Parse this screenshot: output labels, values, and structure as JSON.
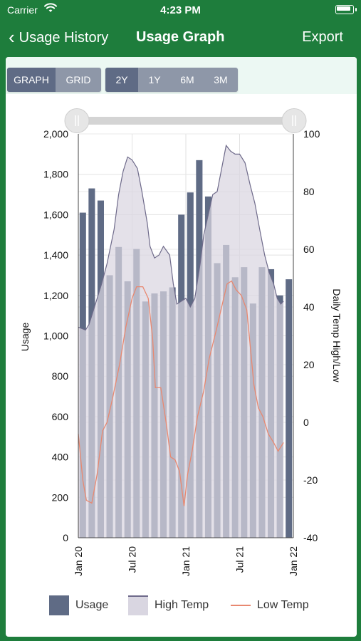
{
  "status": {
    "carrier": "Carrier",
    "time": "4:23 PM"
  },
  "nav": {
    "back_label": "Usage History",
    "title": "Usage Graph",
    "export_label": "Export"
  },
  "toolbar": {
    "view_options": [
      {
        "label": "GRAPH",
        "active": true
      },
      {
        "label": "GRID",
        "active": false
      }
    ],
    "range_options": [
      {
        "label": "2Y",
        "active": true
      },
      {
        "label": "1Y",
        "active": false
      },
      {
        "label": "6M",
        "active": false
      },
      {
        "label": "3M",
        "active": false
      }
    ]
  },
  "range_slider": {
    "start_fraction": 0,
    "end_fraction": 1
  },
  "legend": {
    "usage": "Usage",
    "high": "High Temp",
    "low": "Low Temp"
  },
  "colors": {
    "usage": "#5f6b85",
    "high_fill": "#d9d6e1",
    "high_line": "#6e6a8a",
    "low_line": "#e88870",
    "accent": "#1e7d3c"
  },
  "chart_data": {
    "type": "bar",
    "ylabel": "Usage",
    "y2label": "Daily Temp High/Low",
    "ylim": [
      0,
      2000
    ],
    "y2lim": [
      -40,
      100
    ],
    "yticks": [
      "0",
      "200",
      "400",
      "600",
      "800",
      "1,000",
      "1,200",
      "1,400",
      "1,600",
      "1,800",
      "2,000"
    ],
    "y2ticks": [
      "-40",
      "-20",
      "0",
      "20",
      "40",
      "60",
      "80",
      "100"
    ],
    "xlim": [
      0,
      24
    ],
    "xticks": [
      {
        "pos": 0,
        "label": "Jan 20"
      },
      {
        "pos": 6,
        "label": "Jul 20"
      },
      {
        "pos": 12,
        "label": "Jan 21"
      },
      {
        "pos": 18,
        "label": "Jul 21"
      },
      {
        "pos": 24,
        "label": "Jan 22"
      }
    ],
    "grid": true,
    "series": [
      {
        "name": "Usage",
        "type": "bar",
        "values": [
          1610,
          1730,
          1670,
          1300,
          1440,
          1270,
          1430,
          1170,
          1210,
          1220,
          1240,
          1600,
          1710,
          1870,
          1690,
          1360,
          1450,
          1290,
          1340,
          1160,
          1340,
          1330,
          1200,
          1280
        ]
      },
      {
        "name": "High Temp",
        "type": "area",
        "points": [
          [
            0,
            33
          ],
          [
            0.8,
            32
          ],
          [
            1.2,
            34
          ],
          [
            1.8,
            40
          ],
          [
            2.6,
            48
          ],
          [
            3.2,
            55
          ],
          [
            4,
            67
          ],
          [
            4.5,
            79
          ],
          [
            5,
            87
          ],
          [
            5.5,
            92
          ],
          [
            6,
            91
          ],
          [
            6.6,
            88
          ],
          [
            7.1,
            80
          ],
          [
            7.7,
            69
          ],
          [
            8,
            61
          ],
          [
            8.5,
            57
          ],
          [
            9,
            58
          ],
          [
            9.5,
            61
          ],
          [
            10.2,
            58
          ],
          [
            10.6,
            48
          ],
          [
            11,
            41
          ],
          [
            11.5,
            42
          ],
          [
            12,
            43
          ],
          [
            12.5,
            40
          ],
          [
            13,
            43
          ],
          [
            13.6,
            55
          ],
          [
            14,
            65
          ],
          [
            14.5,
            72
          ],
          [
            15,
            79
          ],
          [
            15.5,
            80
          ],
          [
            16,
            88
          ],
          [
            16.5,
            96
          ],
          [
            17,
            94
          ],
          [
            17.5,
            93
          ],
          [
            18,
            93
          ],
          [
            18.6,
            90
          ],
          [
            19.2,
            82
          ],
          [
            19.7,
            76
          ],
          [
            20.3,
            66
          ],
          [
            20.8,
            58
          ],
          [
            21.3,
            52
          ],
          [
            21.8,
            48
          ],
          [
            22.2,
            43
          ],
          [
            22.6,
            41
          ],
          [
            22.9,
            42
          ]
        ]
      },
      {
        "name": "Low Temp",
        "type": "line",
        "points": [
          [
            0,
            -4
          ],
          [
            0.5,
            -20
          ],
          [
            0.9,
            -27
          ],
          [
            1.5,
            -28
          ],
          [
            2.1,
            -18
          ],
          [
            2.7,
            -3
          ],
          [
            3.2,
            0
          ],
          [
            3.8,
            8
          ],
          [
            4.6,
            20
          ],
          [
            5.3,
            33
          ],
          [
            6,
            43
          ],
          [
            6.5,
            47
          ],
          [
            7.2,
            47
          ],
          [
            7.8,
            43
          ],
          [
            8.3,
            29
          ],
          [
            8.6,
            12
          ],
          [
            9.2,
            12
          ],
          [
            9.8,
            0
          ],
          [
            10.3,
            -12
          ],
          [
            10.8,
            -13
          ],
          [
            11.3,
            -17
          ],
          [
            11.8,
            -29
          ],
          [
            12.2,
            -18
          ],
          [
            12.7,
            -10
          ],
          [
            13.3,
            2
          ],
          [
            14,
            11
          ],
          [
            14.6,
            22
          ],
          [
            15.4,
            32
          ],
          [
            16,
            40
          ],
          [
            16.6,
            48
          ],
          [
            17.1,
            49
          ],
          [
            17.6,
            46
          ],
          [
            18.2,
            44
          ],
          [
            18.8,
            39
          ],
          [
            19.2,
            26
          ],
          [
            19.6,
            13
          ],
          [
            20.1,
            5
          ],
          [
            20.6,
            2
          ],
          [
            21.2,
            -4
          ],
          [
            21.8,
            -7
          ],
          [
            22.3,
            -10
          ],
          [
            22.9,
            -7
          ]
        ]
      }
    ]
  }
}
